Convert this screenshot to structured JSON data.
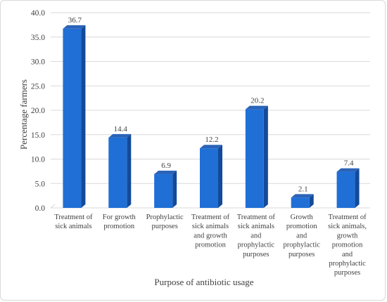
{
  "chart_data": {
    "type": "bar",
    "categories": [
      [
        "Treatment of",
        "sick animals"
      ],
      [
        "For growth",
        "promotion"
      ],
      [
        "Prophylactic",
        "purposes"
      ],
      [
        "Treatment of",
        "sick animals",
        "and growth",
        "promotion"
      ],
      [
        "Treatment of",
        "sick animals",
        "and",
        "prophylactic",
        "purposes"
      ],
      [
        "Growth",
        "promotion",
        "and",
        "prophylactic",
        "purposes"
      ],
      [
        "Treatment of",
        "sick animals,",
        "growth",
        "promotion",
        "and",
        "prophylactic",
        "purposes"
      ]
    ],
    "values": [
      36.7,
      14.4,
      6.9,
      12.2,
      20.2,
      2.1,
      7.4
    ],
    "data_labels": [
      "36.7",
      "14.4",
      "6.9",
      "12.2",
      "20.2",
      "2.1",
      "7.4"
    ],
    "title": "",
    "xlabel": "Purpose of antibiotic usage",
    "ylabel": "Percentage farmers",
    "ylim": [
      0,
      40
    ],
    "yticks": [
      "0.0",
      "5.0",
      "10.0",
      "15.0",
      "20.0",
      "25.0",
      "30.0",
      "35.0",
      "40.0"
    ],
    "grid": true,
    "legend": "none",
    "colors": {
      "bar_front": "#1f6fd6",
      "bar_side": "#134a99",
      "bar_top": "#2b63b8",
      "grid": "#d9d9d9"
    }
  }
}
